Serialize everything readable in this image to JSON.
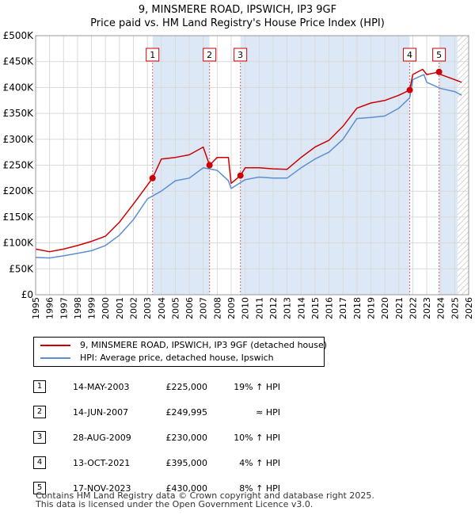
{
  "title_line1": "9, MINSMERE ROAD, IPSWICH, IP3 9GF",
  "title_line2": "Price paid vs. HM Land Registry's House Price Index (HPI)",
  "colors": {
    "property": "#cc0000",
    "hpi": "#5b8fd0",
    "shade": "#dde8f7",
    "grid": "#d9d9d9"
  },
  "legend": {
    "property": "9, MINSMERE ROAD, IPSWICH, IP3 9GF (detached house)",
    "hpi": "HPI: Average price, detached house, Ipswich"
  },
  "sales": [
    {
      "num": "1",
      "date": "14-MAY-2003",
      "price": "£225,000",
      "diff": "19% ↑ HPI"
    },
    {
      "num": "2",
      "date": "14-JUN-2007",
      "price": "£249,995",
      "diff": "≈ HPI"
    },
    {
      "num": "3",
      "date": "28-AUG-2009",
      "price": "£230,000",
      "diff": "10% ↑ HPI"
    },
    {
      "num": "4",
      "date": "13-OCT-2021",
      "price": "£395,000",
      "diff": "4% ↑ HPI"
    },
    {
      "num": "5",
      "date": "17-NOV-2023",
      "price": "£430,000",
      "diff": "8% ↑ HPI"
    }
  ],
  "footer": {
    "line1": "Contains HM Land Registry data © Crown copyright and database right 2025.",
    "line2": "This data is licensed under the Open Government Licence v3.0."
  },
  "chart_data": {
    "type": "line",
    "title": "Price paid vs. HM Land Registry's House Price Index (HPI)",
    "xlim": [
      1995,
      2026
    ],
    "ylim": [
      0,
      500000
    ],
    "x_ticks": [
      1995,
      1996,
      1997,
      1998,
      1999,
      2000,
      2001,
      2002,
      2003,
      2004,
      2005,
      2006,
      2007,
      2008,
      2009,
      2010,
      2011,
      2012,
      2013,
      2014,
      2015,
      2016,
      2017,
      2018,
      2019,
      2020,
      2021,
      2022,
      2023,
      2024,
      2025,
      2026
    ],
    "y_ticks": [
      0,
      50000,
      100000,
      150000,
      200000,
      250000,
      300000,
      350000,
      400000,
      450000,
      500000
    ],
    "y_tick_labels": [
      "£0",
      "£50K",
      "£100K",
      "£150K",
      "£200K",
      "£250K",
      "£300K",
      "£350K",
      "£400K",
      "£450K",
      "£500K"
    ],
    "shaded_spans": [
      [
        2003.37,
        2007.45
      ],
      [
        2009.66,
        2021.78
      ],
      [
        2023.88,
        2025.2
      ]
    ],
    "hatched_span": [
      2025.2,
      2026
    ],
    "sale_points": [
      {
        "label": "1",
        "x": 2003.37,
        "y": 225000
      },
      {
        "label": "2",
        "x": 2007.45,
        "y": 249995
      },
      {
        "label": "3",
        "x": 2009.66,
        "y": 230000
      },
      {
        "label": "4",
        "x": 2021.78,
        "y": 395000
      },
      {
        "label": "5",
        "x": 2023.88,
        "y": 430000
      }
    ],
    "series": [
      {
        "name": "9, MINSMERE ROAD, IPSWICH, IP3 9GF (detached house)",
        "x": [
          1995,
          1996,
          1997,
          1998,
          1999,
          2000,
          2001,
          2002,
          2003.37,
          2004,
          2005,
          2006,
          2007,
          2007.45,
          2008,
          2008.8,
          2009,
          2009.66,
          2010,
          2011,
          2012,
          2013,
          2014,
          2015,
          2016,
          2017,
          2018,
          2019,
          2020,
          2021,
          2021.78,
          2022,
          2022.7,
          2023,
          2023.88,
          2024,
          2025,
          2025.5
        ],
        "y": [
          88000,
          83000,
          88000,
          95000,
          103000,
          113000,
          140000,
          175000,
          225000,
          262000,
          265000,
          270000,
          285000,
          249995,
          265000,
          265000,
          215000,
          230000,
          245000,
          245000,
          243000,
          242000,
          265000,
          285000,
          298000,
          325000,
          360000,
          370000,
          375000,
          385000,
          395000,
          425000,
          435000,
          425000,
          430000,
          425000,
          415000,
          410000
        ]
      },
      {
        "name": "HPI: Average price, detached house, Ipswich",
        "x": [
          1995,
          1996,
          1997,
          1998,
          1999,
          2000,
          2001,
          2002,
          2003,
          2004,
          2005,
          2006,
          2007,
          2008,
          2008.8,
          2009,
          2010,
          2011,
          2012,
          2013,
          2014,
          2015,
          2016,
          2017,
          2018,
          2019,
          2020,
          2021,
          2021.78,
          2022,
          2022.8,
          2023,
          2024,
          2025,
          2025.5
        ],
        "y": [
          72000,
          71000,
          75000,
          80000,
          85000,
          95000,
          115000,
          145000,
          185000,
          200000,
          220000,
          225000,
          245000,
          240000,
          220000,
          205000,
          222000,
          227000,
          225000,
          225000,
          245000,
          262000,
          275000,
          300000,
          340000,
          342000,
          345000,
          360000,
          380000,
          415000,
          425000,
          410000,
          398000,
          392000,
          385000
        ]
      }
    ]
  }
}
